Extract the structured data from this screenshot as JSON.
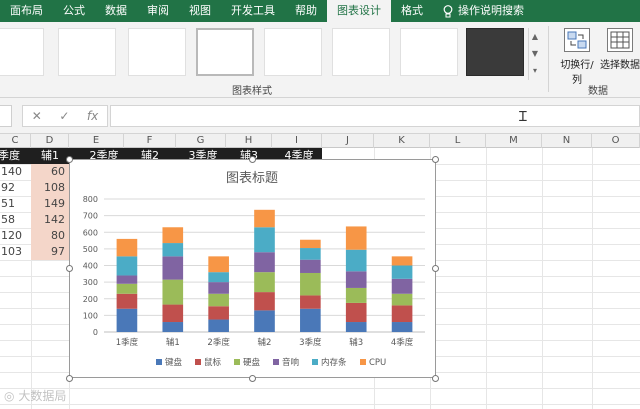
{
  "ribbon": {
    "tabs": [
      "面布局",
      "公式",
      "数据",
      "审阅",
      "视图",
      "开发工具",
      "帮助",
      "图表设计",
      "格式"
    ],
    "active_tab": "图表设计",
    "search_label": "操作说明搜索",
    "group_chart_styles": "图表样式",
    "group_data": "数据",
    "switch_row_col": "切换行/列",
    "select_data": "选择数据"
  },
  "formula_bar": {
    "cancel": "✕",
    "enter": "✓",
    "fx": "fx",
    "value": ""
  },
  "columns": [
    "C",
    "D",
    "E",
    "F",
    "G",
    "H",
    "I",
    "J",
    "K",
    "L",
    "M",
    "N",
    "O"
  ],
  "table": {
    "headers": [
      "季度",
      "辅1",
      "2季度",
      "辅2",
      "3季度",
      "辅3",
      "4季度"
    ],
    "col_c": [
      "140",
      "92",
      "51",
      "58",
      "120",
      "103"
    ],
    "col_d": [
      "60",
      "108",
      "149",
      "142",
      "80",
      "97"
    ]
  },
  "chart_data": {
    "type": "bar",
    "stacked": true,
    "title": "图表标题",
    "categories": [
      "1季度",
      "辅1",
      "2季度",
      "辅2",
      "3季度",
      "辅3",
      "4季度"
    ],
    "ylim": [
      0,
      800
    ],
    "yticks": [
      0,
      100,
      200,
      300,
      400,
      500,
      600,
      700,
      800
    ],
    "grid": true,
    "legend_position": "bottom",
    "series": [
      {
        "name": "键盘",
        "color": "#4a78b8",
        "values": [
          140,
          60,
          75,
          130,
          140,
          60,
          60
        ]
      },
      {
        "name": "鼠标",
        "color": "#c0504d",
        "values": [
          90,
          105,
          80,
          110,
          80,
          115,
          100
        ]
      },
      {
        "name": "硬盘",
        "color": "#9bbb59",
        "values": [
          60,
          150,
          75,
          120,
          135,
          90,
          70
        ]
      },
      {
        "name": "音响",
        "color": "#8064a2",
        "values": [
          50,
          140,
          70,
          120,
          80,
          100,
          90
        ]
      },
      {
        "name": "内存条",
        "color": "#4bacc6",
        "values": [
          115,
          80,
          60,
          150,
          70,
          130,
          80
        ]
      },
      {
        "name": "CPU",
        "color": "#f79646",
        "values": [
          105,
          95,
          95,
          105,
          50,
          140,
          55
        ]
      }
    ]
  },
  "watermark": "大数据局"
}
